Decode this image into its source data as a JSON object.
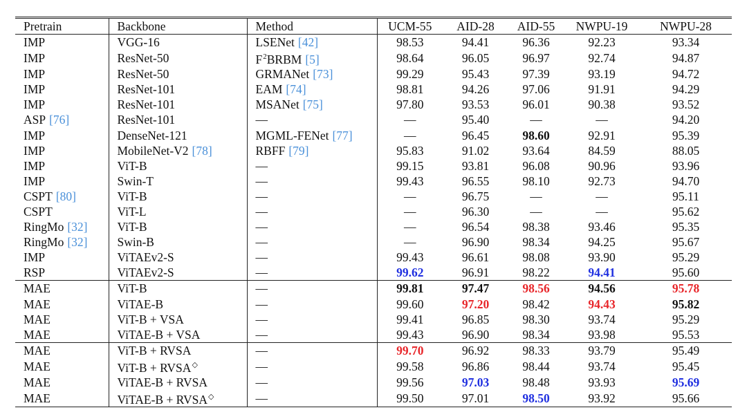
{
  "table": {
    "header": [
      "Pretrain",
      "Backbone",
      "Method",
      "UCM-55",
      "AID-28",
      "AID-55",
      "NWPU-19",
      "NWPU-28"
    ],
    "row_groups": [
      [
        [
          "IMP",
          "VGG-16",
          [
            "LSENet",
            {
              "text": "[42]",
              "style": "cite"
            }
          ],
          "98.53",
          "94.41",
          "96.36",
          "92.23",
          "93.34"
        ],
        [
          "IMP",
          "ResNet-50",
          [
            "F",
            {
              "text": "2",
              "style": "sup"
            },
            "BRBM",
            {
              "text": "[5]",
              "style": "cite"
            }
          ],
          "98.64",
          "96.05",
          "96.97",
          "92.74",
          "94.87"
        ],
        [
          "IMP",
          "ResNet-50",
          [
            "GRMANet",
            {
              "text": "[73]",
              "style": "cite"
            }
          ],
          "99.29",
          "95.43",
          "97.39",
          "93.19",
          "94.72"
        ],
        [
          "IMP",
          "ResNet-101",
          [
            "EAM",
            {
              "text": "[74]",
              "style": "cite"
            }
          ],
          "98.81",
          "94.26",
          "97.06",
          "91.91",
          "94.29"
        ],
        [
          "IMP",
          "ResNet-101",
          [
            "MSANet",
            {
              "text": "[75]",
              "style": "cite"
            }
          ],
          "97.80",
          "93.53",
          "96.01",
          "90.38",
          "93.52"
        ],
        [
          [
            "ASP",
            {
              "text": "[76]",
              "style": "cite"
            }
          ],
          "ResNet-101",
          "—",
          "—",
          "95.40",
          "—",
          "—",
          "94.20"
        ],
        [
          "IMP",
          "DenseNet-121",
          [
            "MGML-FENet",
            {
              "text": "[77]",
              "style": "cite"
            }
          ],
          "—",
          "96.45",
          {
            "text": "98.60",
            "style": "bold"
          },
          "92.91",
          "95.39"
        ],
        [
          "IMP",
          [
            "MobileNet-V2",
            {
              "text": "[78]",
              "style": "cite"
            }
          ],
          [
            "RBFF",
            {
              "text": "[79]",
              "style": "cite"
            }
          ],
          "95.83",
          "91.02",
          "93.64",
          "84.59",
          "88.05"
        ],
        [
          "IMP",
          "ViT-B",
          "—",
          "99.15",
          "93.81",
          "96.08",
          "90.96",
          "93.96"
        ],
        [
          "IMP",
          "Swin-T",
          "—",
          "99.43",
          "96.55",
          "98.10",
          "92.73",
          "94.70"
        ],
        [
          [
            "CSPT",
            {
              "text": "[80]",
              "style": "cite"
            }
          ],
          "ViT-B",
          "—",
          "—",
          "96.75",
          "—",
          "—",
          "95.11"
        ],
        [
          "CSPT",
          "ViT-L",
          "—",
          "—",
          "96.30",
          "—",
          "—",
          "95.62"
        ],
        [
          [
            "RingMo",
            {
              "text": "[32]",
              "style": "cite"
            }
          ],
          "ViT-B",
          "—",
          "—",
          "96.54",
          "98.38",
          "93.46",
          "95.35"
        ],
        [
          [
            "RingMo",
            {
              "text": "[32]",
              "style": "cite"
            }
          ],
          "Swin-B",
          "—",
          "—",
          "96.90",
          "98.34",
          "94.25",
          "95.67"
        ],
        [
          "IMP",
          "ViTAEv2-S",
          "—",
          "99.43",
          "96.61",
          "98.08",
          "93.90",
          "95.29"
        ],
        [
          "RSP",
          "ViTAEv2-S",
          "—",
          {
            "text": "99.62",
            "style": "bold-blue"
          },
          "96.91",
          "98.22",
          {
            "text": "94.41",
            "style": "bold-blue"
          },
          "95.60"
        ]
      ],
      [
        [
          "MAE",
          "ViT-B",
          "—",
          {
            "text": "99.81",
            "style": "bold"
          },
          {
            "text": "97.47",
            "style": "bold"
          },
          {
            "text": "98.56",
            "style": "bold-red"
          },
          {
            "text": "94.56",
            "style": "bold"
          },
          {
            "text": "95.78",
            "style": "bold-red"
          }
        ],
        [
          "MAE",
          "ViTAE-B",
          "—",
          "99.60",
          {
            "text": "97.20",
            "style": "bold-red"
          },
          "98.42",
          {
            "text": "94.43",
            "style": "bold-red"
          },
          {
            "text": "95.82",
            "style": "bold"
          }
        ],
        [
          "MAE",
          "ViT-B + VSA",
          "—",
          "99.41",
          "96.85",
          "98.30",
          "93.74",
          "95.29"
        ],
        [
          "MAE",
          "ViTAE-B + VSA",
          "—",
          "99.43",
          "96.90",
          "98.34",
          "93.98",
          "95.53"
        ]
      ],
      [
        [
          "MAE",
          "ViT-B + RVSA",
          "—",
          {
            "text": "99.70",
            "style": "bold-red"
          },
          "96.92",
          "98.33",
          "93.79",
          "95.49"
        ],
        [
          "MAE",
          [
            "ViT-B + RVSA",
            {
              "text": "◇",
              "style": "sup"
            }
          ],
          "—",
          "99.58",
          "96.86",
          "98.44",
          "93.74",
          "95.45"
        ],
        [
          "MAE",
          "ViTAE-B + RVSA",
          "—",
          "99.56",
          {
            "text": "97.03",
            "style": "bold-blue"
          },
          "98.48",
          "93.93",
          {
            "text": "95.69",
            "style": "bold-blue"
          }
        ],
        [
          "MAE",
          [
            "ViTAE-B + RVSA",
            {
              "text": "◇",
              "style": "sup"
            }
          ],
          "—",
          "99.50",
          "97.01",
          {
            "text": "98.50",
            "style": "bold-blue"
          },
          "93.92",
          "95.66"
        ]
      ]
    ]
  }
}
